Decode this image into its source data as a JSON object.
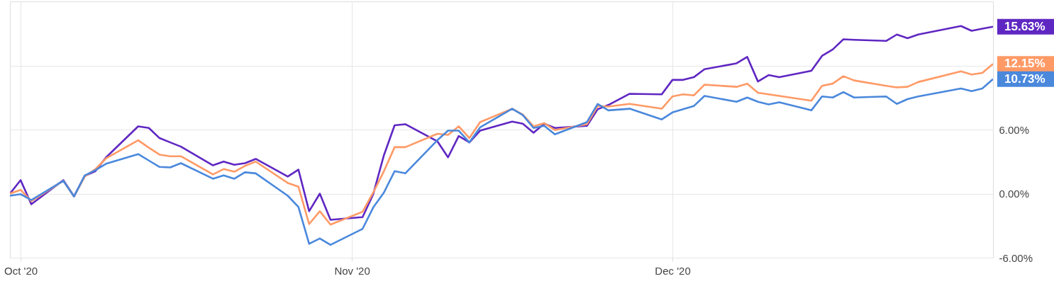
{
  "chart_data": {
    "type": "line",
    "x": [
      "2020-09-30",
      "2020-10-01",
      "2020-10-02",
      "2020-10-05",
      "2020-10-06",
      "2020-10-07",
      "2020-10-08",
      "2020-10-09",
      "2020-10-12",
      "2020-10-13",
      "2020-10-14",
      "2020-10-15",
      "2020-10-16",
      "2020-10-19",
      "2020-10-20",
      "2020-10-21",
      "2020-10-22",
      "2020-10-23",
      "2020-10-26",
      "2020-10-27",
      "2020-10-28",
      "2020-10-29",
      "2020-10-30",
      "2020-11-02",
      "2020-11-03",
      "2020-11-04",
      "2020-11-05",
      "2020-11-06",
      "2020-11-09",
      "2020-11-10",
      "2020-11-11",
      "2020-11-12",
      "2020-11-13",
      "2020-11-16",
      "2020-11-17",
      "2020-11-18",
      "2020-11-19",
      "2020-11-20",
      "2020-11-23",
      "2020-11-24",
      "2020-11-25",
      "2020-11-27",
      "2020-11-30",
      "2020-12-01",
      "2020-12-02",
      "2020-12-03",
      "2020-12-04",
      "2020-12-07",
      "2020-12-08",
      "2020-12-09",
      "2020-12-10",
      "2020-12-11",
      "2020-12-14",
      "2020-12-15",
      "2020-12-16",
      "2020-12-17",
      "2020-12-18",
      "2020-12-21",
      "2020-12-22",
      "2020-12-23",
      "2020-12-24",
      "2020-12-28",
      "2020-12-29",
      "2020-12-30",
      "2020-12-31"
    ],
    "series": [
      {
        "color": "#5f27c2",
        "values": [
          0,
          1.26,
          -1.0,
          1.26,
          -0.26,
          1.66,
          2.1,
          3.4,
          6.3,
          6.15,
          5.2,
          4.8,
          4.4,
          2.65,
          3.0,
          2.7,
          2.85,
          3.25,
          1.6,
          2.25,
          -1.65,
          0,
          -2.45,
          -2.2,
          -0.05,
          3.6,
          6.4,
          6.5,
          4.9,
          3.4,
          5.4,
          4.8,
          5.9,
          6.75,
          6.55,
          5.7,
          6.55,
          6.15,
          6.35,
          7.9,
          8.3,
          9.35,
          9.3,
          10.65,
          10.65,
          10.9,
          11.65,
          12.2,
          12.8,
          10.5,
          11.1,
          10.9,
          11.5,
          12.9,
          13.5,
          14.45,
          14.4,
          14.3,
          14.9,
          14.55,
          14.9,
          15.7,
          15.25,
          15.45,
          15.63
        ],
        "value_labels": [
          null,
          null,
          null,
          null,
          null,
          null,
          null,
          null,
          null,
          null,
          null,
          null,
          null,
          null,
          null,
          null,
          null,
          null,
          null,
          null,
          null,
          null,
          null,
          null,
          null,
          null,
          null,
          null,
          null,
          null,
          null,
          null,
          null,
          null,
          null,
          null,
          null,
          null,
          null,
          null,
          null,
          null,
          null,
          null,
          null,
          null,
          null,
          null,
          null,
          null,
          null,
          null,
          null,
          null,
          null,
          null,
          null,
          null,
          null,
          null,
          null,
          null,
          null,
          null,
          "15.63%"
        ]
      },
      {
        "color": "#ff9a66",
        "values": [
          0,
          0.35,
          -0.7,
          1.2,
          -0.26,
          1.6,
          2.3,
          3.3,
          5.0,
          4.3,
          3.65,
          3.5,
          3.5,
          1.8,
          2.3,
          2.05,
          2.6,
          3.0,
          1.0,
          0.65,
          -2.85,
          -1.65,
          -2.9,
          -1.7,
          0.1,
          2.1,
          4.35,
          4.35,
          5.6,
          5.5,
          6.3,
          5.2,
          6.7,
          7.95,
          7.4,
          6.3,
          6.6,
          5.95,
          6.5,
          8.2,
          8.15,
          8.4,
          7.95,
          9.1,
          9.3,
          9.2,
          10.2,
          10.0,
          10.3,
          9.45,
          9.3,
          9.15,
          8.7,
          10.1,
          10.3,
          11.0,
          10.6,
          10.1,
          9.95,
          10.0,
          10.45,
          11.45,
          11.15,
          11.3,
          12.15
        ],
        "value_labels": [
          null,
          null,
          null,
          null,
          null,
          null,
          null,
          null,
          null,
          null,
          null,
          null,
          null,
          null,
          null,
          null,
          null,
          null,
          null,
          null,
          null,
          null,
          null,
          null,
          null,
          null,
          null,
          null,
          null,
          null,
          null,
          null,
          null,
          null,
          null,
          null,
          null,
          null,
          null,
          null,
          null,
          null,
          null,
          null,
          null,
          null,
          null,
          null,
          null,
          null,
          null,
          null,
          null,
          null,
          null,
          null,
          null,
          null,
          null,
          null,
          null,
          null,
          null,
          null,
          "12.15%"
        ]
      },
      {
        "color": "#4a88dc",
        "values": [
          -0.2,
          -0.05,
          -0.6,
          1.2,
          -0.26,
          1.7,
          2.2,
          2.8,
          3.7,
          3.1,
          2.5,
          2.45,
          2.85,
          1.4,
          1.7,
          1.4,
          2.0,
          1.9,
          -0.2,
          -1.25,
          -4.7,
          -4.2,
          -4.8,
          -3.3,
          -1.3,
          0.1,
          2.1,
          1.9,
          5.0,
          5.9,
          5.9,
          4.8,
          6.2,
          7.95,
          7.35,
          6.15,
          6.35,
          5.55,
          6.7,
          8.4,
          7.8,
          7.95,
          6.95,
          7.6,
          7.9,
          8.2,
          9.15,
          8.6,
          9.0,
          8.6,
          8.35,
          8.55,
          7.8,
          9.1,
          9.0,
          9.5,
          9.0,
          9.1,
          8.4,
          8.85,
          9.1,
          9.85,
          9.6,
          9.85,
          10.73
        ],
        "value_labels": [
          null,
          null,
          null,
          null,
          null,
          null,
          null,
          null,
          null,
          null,
          null,
          null,
          null,
          null,
          null,
          null,
          null,
          null,
          null,
          null,
          null,
          null,
          null,
          null,
          null,
          null,
          null,
          null,
          null,
          null,
          null,
          null,
          null,
          null,
          null,
          null,
          null,
          null,
          null,
          null,
          null,
          null,
          null,
          null,
          null,
          null,
          null,
          null,
          null,
          null,
          null,
          null,
          null,
          null,
          null,
          null,
          null,
          null,
          null,
          null,
          null,
          null,
          null,
          null,
          "10.73%"
        ]
      }
    ],
    "xlim": [
      "2020-09-30",
      "2020-12-31"
    ],
    "xticks": [
      {
        "value": "2020-10-01",
        "label": "Oct '20"
      },
      {
        "value": "2020-11-01",
        "label": "Nov '20"
      },
      {
        "value": "2020-12-01",
        "label": "Dec '20"
      }
    ],
    "ylim": [
      -6,
      18
    ],
    "yticks": [
      {
        "value": -6,
        "label": "-6.00%"
      },
      {
        "value": 0,
        "label": "0.00%"
      },
      {
        "value": 6,
        "label": "6.00%"
      },
      {
        "value": 12,
        "label": null
      }
    ],
    "grid": true,
    "marker": "none",
    "line_style": "solid"
  }
}
